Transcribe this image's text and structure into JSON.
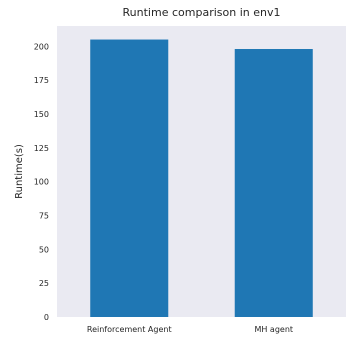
{
  "chart_data": {
    "type": "bar",
    "title": "Runtime comparison in env1",
    "xlabel": "",
    "ylabel": "Runtime(s)",
    "categories": [
      "Reinforcement Agent",
      "MH agent"
    ],
    "values": [
      205,
      198
    ],
    "ylim": [
      0,
      215
    ],
    "yticks": [
      0,
      25,
      50,
      75,
      100,
      125,
      150,
      175,
      200
    ],
    "grid": false,
    "colors": {
      "bar": "#1f77b4",
      "plot_background": "#eaeaf2"
    }
  }
}
